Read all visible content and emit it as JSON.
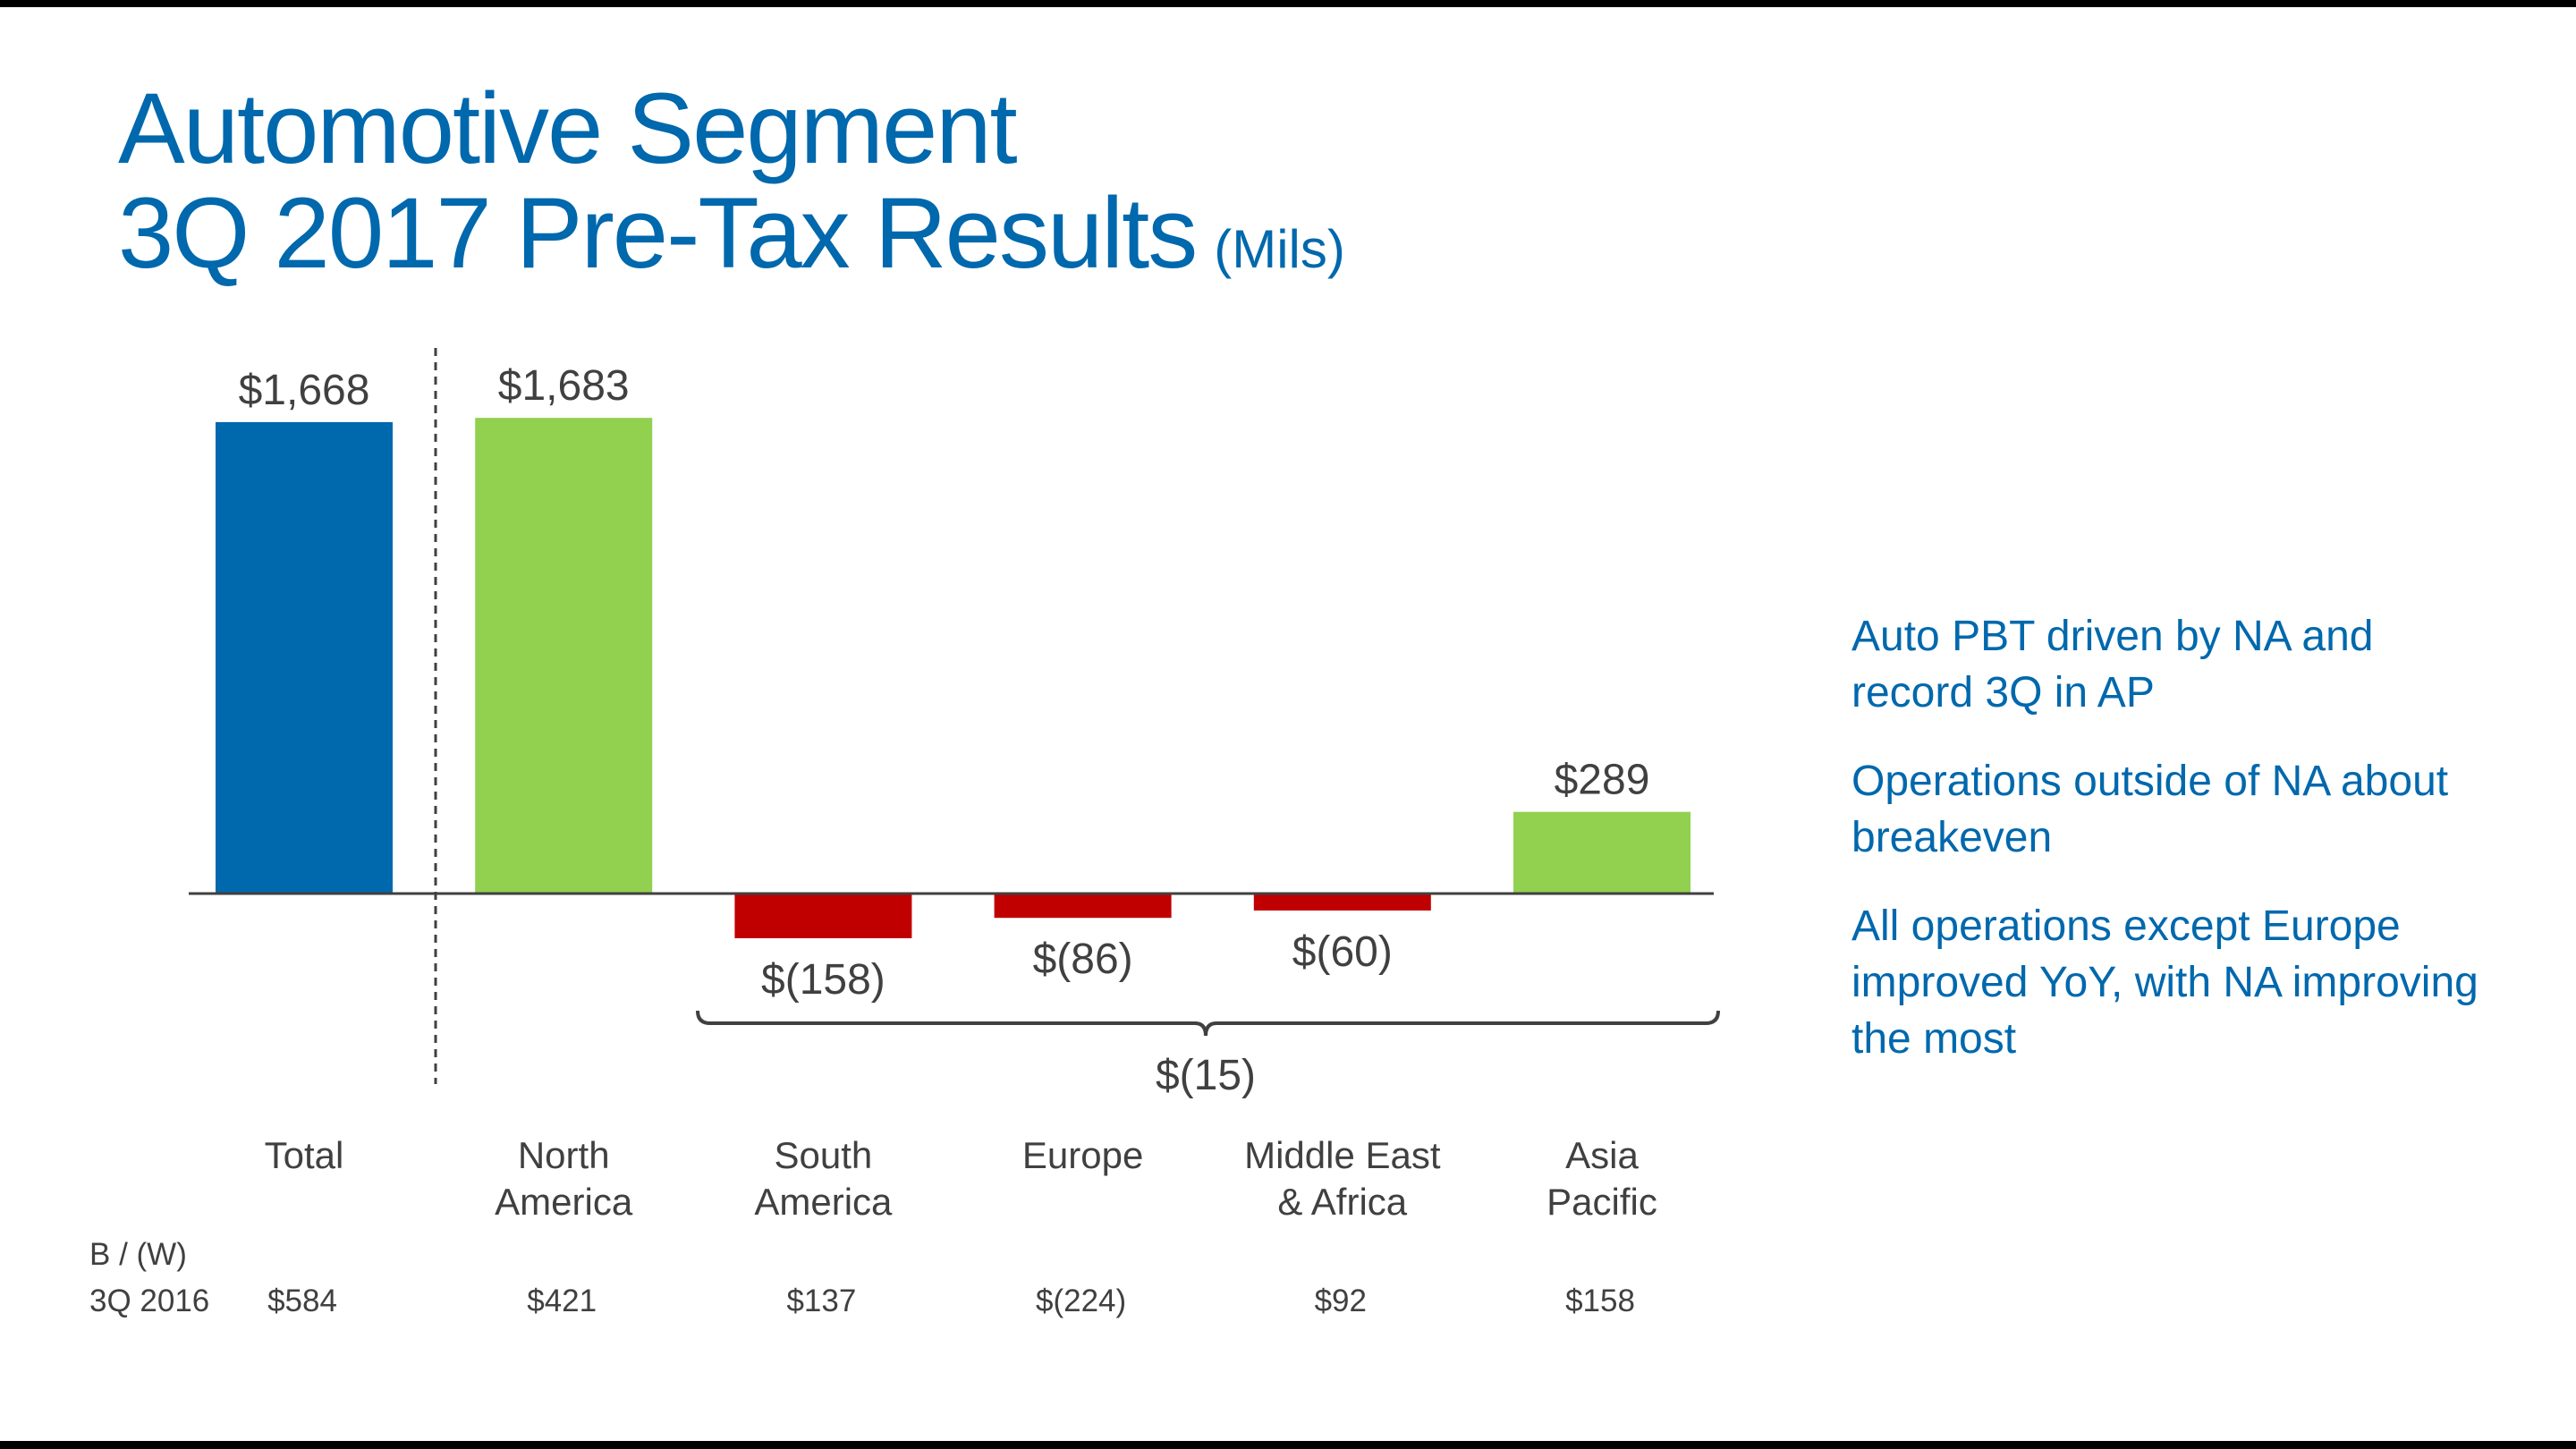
{
  "title": {
    "line1": "Automotive Segment",
    "line2": "3Q 2017 Pre-Tax Results",
    "units": "(Mils)"
  },
  "notes": [
    "Auto PBT driven by NA and record 3Q in AP",
    "Operations outside of NA about breakeven",
    "All operations except Europe improved YoY, with NA improving the most"
  ],
  "chart_data": {
    "type": "bar",
    "categories": [
      [
        "Total"
      ],
      [
        "North",
        "America"
      ],
      [
        "South",
        "America"
      ],
      [
        "Europe"
      ],
      [
        "Middle East",
        "& Africa"
      ],
      [
        "Asia",
        "Pacific"
      ]
    ],
    "values": [
      1668,
      1683,
      -158,
      -86,
      -60,
      289
    ],
    "data_labels": [
      "$1,668",
      "$1,683",
      "$(158)",
      "$(86)",
      "$(60)",
      "$289"
    ],
    "colors": [
      "#0068ad",
      "#92d050",
      "#c00000",
      "#c00000",
      "#c00000",
      "#92d050"
    ],
    "bracket": {
      "from": "South America",
      "to": "Asia Pacific",
      "label": "$(15)",
      "value": -15
    },
    "comparison": {
      "row_label_1": "B / (W)",
      "row_label_2": "3Q 2016",
      "values": [
        "$584",
        "$421",
        "$137",
        "$(224)",
        "$92",
        "$158"
      ]
    },
    "axis_color": "#404040"
  }
}
